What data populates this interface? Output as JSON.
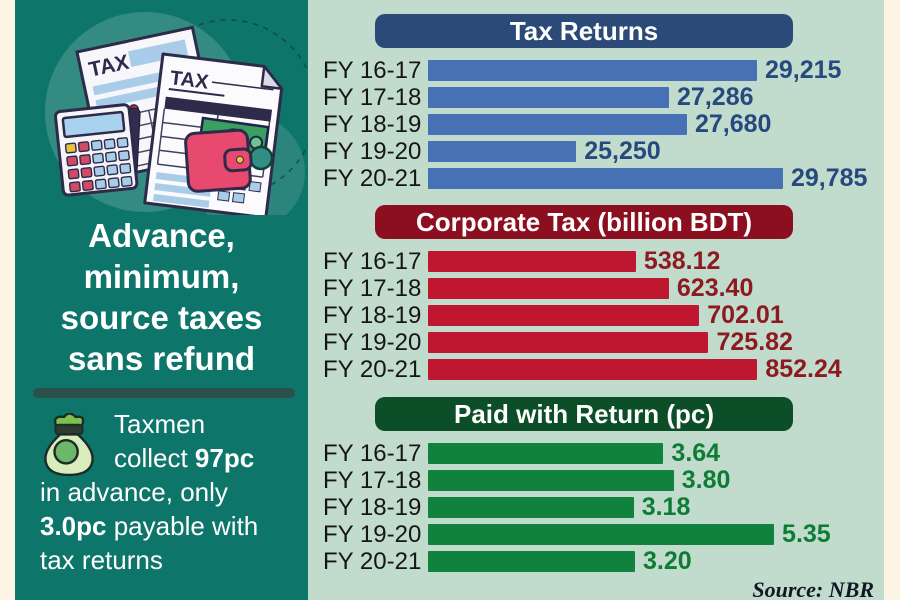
{
  "page": {
    "background": "#fdf4e3"
  },
  "sidebar": {
    "background": "#0e756a",
    "title": "Advance,\nminimum,\nsource taxes\nsans refund",
    "note": {
      "l1": "Taxmen",
      "l2a": "collect ",
      "l2b": "97pc",
      "l3": "in advance, only",
      "l4a": "3.0pc",
      "l4b": " payable with",
      "l5": "tax returns"
    }
  },
  "source_label": "Source: NBR",
  "chart_data": [
    {
      "type": "bar",
      "title": "Tax Returns",
      "categories": [
        "FY 16-17",
        "FY 17-18",
        "FY 18-19",
        "FY 19-20",
        "FY 20-21"
      ],
      "values": [
        29215,
        27286,
        27680,
        25250,
        29785
      ],
      "value_labels": [
        "29,215",
        "27,286",
        "27,680",
        "25,250",
        "29,785"
      ],
      "xlim": [
        22000,
        32000
      ],
      "grid": false,
      "legend_position": "none",
      "orientation": "horizontal",
      "colors": {
        "header_bg": "#2b4a78",
        "bar": "#4671b5",
        "value_text": "#274a7e"
      }
    },
    {
      "type": "bar",
      "title": "Corporate Tax (billion BDT)",
      "categories": [
        "FY 16-17",
        "FY 17-18",
        "FY 18-19",
        "FY 19-20",
        "FY 20-21"
      ],
      "values": [
        538.12,
        623.4,
        702.01,
        725.82,
        852.24
      ],
      "value_labels": [
        "538.12",
        "623.40",
        "702.01",
        "725.82",
        "852.24"
      ],
      "xlim": [
        0,
        1180
      ],
      "grid": false,
      "legend_position": "none",
      "orientation": "horizontal",
      "colors": {
        "header_bg": "#8c0f20",
        "bar": "#c01731",
        "value_text": "#8c1a1f"
      }
    },
    {
      "type": "bar",
      "title": "Paid with Return (pc)",
      "categories": [
        "FY 16-17",
        "FY 17-18",
        "FY 18-19",
        "FY 19-20",
        "FY 20-21"
      ],
      "values": [
        3.64,
        3.8,
        3.18,
        5.35,
        3.2
      ],
      "value_labels": [
        "3.64",
        "3.80",
        "3.18",
        "5.35",
        "3.20"
      ],
      "xlim": [
        0,
        7.05
      ],
      "grid": false,
      "legend_position": "none",
      "orientation": "horizontal",
      "colors": {
        "header_bg": "#0c4e28",
        "bar": "#10823e",
        "value_text": "#0e7c35"
      }
    }
  ]
}
